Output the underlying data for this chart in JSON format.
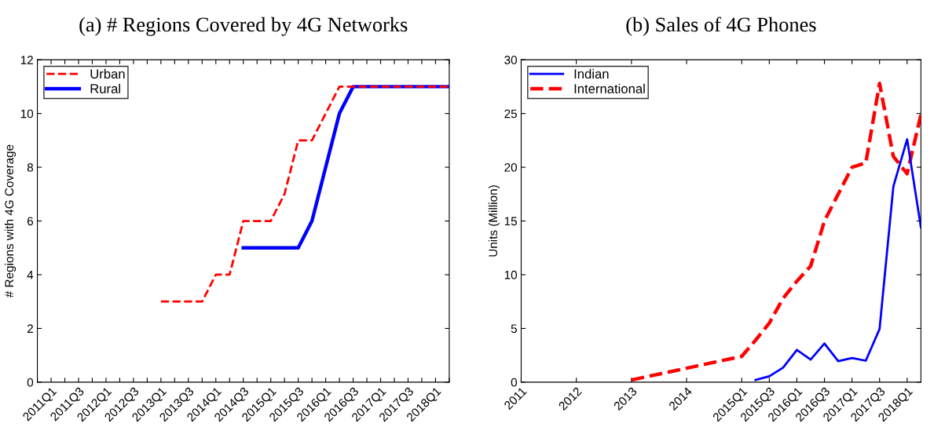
{
  "chart_data": [
    {
      "type": "line",
      "title": "(a) # Regions Covered by 4G Networks",
      "ylabel": "# Regions with 4G Coverage",
      "categories": [
        null,
        "2011Q1",
        null,
        "2011Q3",
        null,
        "2012Q1",
        null,
        "2012Q3",
        null,
        "2013Q1",
        null,
        "2013Q3",
        null,
        "2014Q1",
        null,
        "2014Q3",
        null,
        "2015Q1",
        null,
        "2015Q3",
        null,
        "2016Q1",
        null,
        "2016Q3",
        null,
        "2017Q1",
        null,
        "2017Q3",
        null,
        "2018Q1",
        null
      ],
      "series": [
        {
          "name": "Urban",
          "color": "#ff0000",
          "line_style": "dashed",
          "values": [
            null,
            null,
            null,
            null,
            null,
            null,
            null,
            null,
            null,
            3,
            3,
            3,
            3,
            4,
            4,
            6,
            6,
            6,
            7,
            9,
            9,
            10,
            11,
            11,
            11,
            11,
            11,
            11,
            11,
            11,
            11
          ]
        },
        {
          "name": "Rural",
          "color": "#0000ff",
          "line_style": "solid",
          "values": [
            null,
            null,
            null,
            null,
            null,
            null,
            null,
            null,
            null,
            null,
            null,
            null,
            null,
            null,
            null,
            5,
            5,
            5,
            5,
            5,
            6,
            8,
            10,
            11,
            11,
            11,
            11,
            11,
            11,
            11,
            11
          ]
        }
      ],
      "ylim": [
        0,
        12
      ],
      "yticks": [
        0,
        2,
        4,
        6,
        8,
        10,
        12
      ],
      "grid": false,
      "legend": "top left",
      "marker": "none"
    },
    {
      "type": "line",
      "title": "(b) Sales of 4G Phones",
      "ylabel": "Units (Million)",
      "series": [
        {
          "name": "Indian",
          "color": "#0000ff",
          "line_style": "solid",
          "x": [
            2015.25,
            2015.5,
            2015.75,
            2016,
            2016.25,
            2016.5,
            2016.75,
            2017,
            2017.25,
            2017.5,
            2017.75,
            2018,
            2018.25
          ],
          "values": [
            0.2,
            0.55,
            1.35,
            3.0,
            2.1,
            3.6,
            1.95,
            2.25,
            2.0,
            4.95,
            18.2,
            22.6,
            14.4
          ]
        },
        {
          "name": "International",
          "color": "#ff0000",
          "line_style": "dashed",
          "x": [
            2013,
            2014,
            2015,
            2015.25,
            2015.5,
            2015.75,
            2016,
            2016.25,
            2016.5,
            2016.75,
            2017,
            2017.25,
            2017.5,
            2017.75,
            2018,
            2018.25
          ],
          "values": [
            0.2,
            1.3,
            2.4,
            3.9,
            5.5,
            7.8,
            9.4,
            10.8,
            15.0,
            17.5,
            20.0,
            20.4,
            27.8,
            21.0,
            19.4,
            24.9
          ]
        }
      ],
      "xlim": [
        2011,
        2018.25
      ],
      "xticks": [
        2011,
        2012,
        2013,
        2014,
        {
          "value": 2015,
          "label": "2015Q1"
        },
        {
          "value": 2015.5,
          "label": "2015Q3"
        },
        {
          "value": 2016,
          "label": "2016Q1"
        },
        {
          "value": 2016.5,
          "label": "2016Q3"
        },
        {
          "value": 2017,
          "label": "2017Q1"
        },
        {
          "value": 2017.5,
          "label": "2017Q3"
        },
        {
          "value": 2018,
          "label": "2018Q1"
        }
      ],
      "ylim": [
        0,
        30
      ],
      "yticks": [
        0,
        5,
        10,
        15,
        20,
        25,
        30
      ],
      "grid": false,
      "legend": "top left",
      "marker": "none"
    }
  ]
}
